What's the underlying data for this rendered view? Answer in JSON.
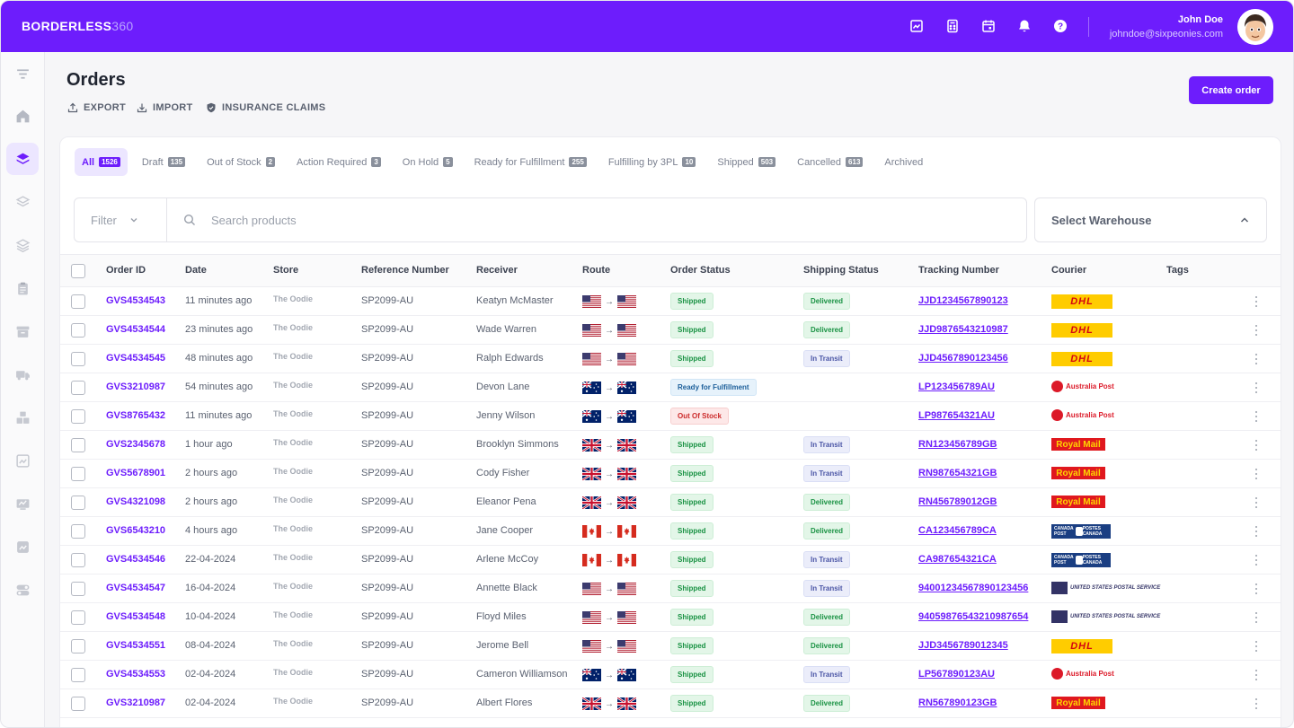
{
  "brand": {
    "name": "BORDERLESS",
    "suffix": "360"
  },
  "user": {
    "name": "John Doe",
    "email": "johndoe@sixpeonies.com"
  },
  "page": {
    "title": "Orders",
    "create_button": "Create order"
  },
  "actions": [
    {
      "label": "EXPORT",
      "icon": "export-icon"
    },
    {
      "label": "IMPORT",
      "icon": "import-icon"
    },
    {
      "label": "INSURANCE CLAIMS",
      "icon": "shield-icon"
    }
  ],
  "tabs": [
    {
      "label": "All",
      "count": "1526",
      "active": true
    },
    {
      "label": "Draft",
      "count": "135"
    },
    {
      "label": "Out of Stock",
      "count": "2"
    },
    {
      "label": "Action Required",
      "count": "3"
    },
    {
      "label": "On Hold",
      "count": "5"
    },
    {
      "label": "Ready for Fulfillment",
      "count": "255"
    },
    {
      "label": "Fulfilling by 3PL",
      "count": "10"
    },
    {
      "label": "Shipped",
      "count": "503"
    },
    {
      "label": "Cancelled",
      "count": "613"
    },
    {
      "label": "Archived",
      "count": ""
    }
  ],
  "filter": {
    "label": "Filter",
    "search_placeholder": "Search products",
    "warehouse_placeholder": "Select Warehouse"
  },
  "columns": [
    "Order ID",
    "Date",
    "Store",
    "Reference Number",
    "Receiver",
    "Route",
    "Order Status",
    "Shipping Status",
    "Tracking Number",
    "Courier",
    "Tags"
  ],
  "colors": {
    "accent": "#6d1dfc",
    "shipped": "#199243",
    "out_of_stock": "#cc2b2b"
  },
  "orders": [
    {
      "id": "GVS4534543",
      "date": "11 minutes ago",
      "store": "The Oodie",
      "ref": "SP2099-AU",
      "receiver": "Keatyn McMaster",
      "route": "us",
      "status": "Shipped",
      "shipping": "Delivered",
      "tracking": "JJD1234567890123",
      "courier": "dhl"
    },
    {
      "id": "GVS4534544",
      "date": "23 minutes ago",
      "store": "The Oodie",
      "ref": "SP2099-AU",
      "receiver": "Wade Warren",
      "route": "us",
      "status": "Shipped",
      "shipping": "Delivered",
      "tracking": "JJD9876543210987",
      "courier": "dhl"
    },
    {
      "id": "GVS4534545",
      "date": "48 minutes ago",
      "store": "The Oodie",
      "ref": "SP2099-AU",
      "receiver": "Ralph Edwards",
      "route": "us",
      "status": "Shipped",
      "shipping": "In Transit",
      "tracking": "JJD4567890123456",
      "courier": "dhl"
    },
    {
      "id": "GVS3210987",
      "date": "54 minutes ago",
      "store": "The Oodie",
      "ref": "SP2099-AU",
      "receiver": "Devon Lane",
      "route": "au",
      "status": "Ready for Fulfillment",
      "shipping": "",
      "tracking": "LP123456789AU",
      "courier": "auspost"
    },
    {
      "id": "GVS8765432",
      "date": "11 minutes ago",
      "store": "The Oodie",
      "ref": "SP2099-AU",
      "receiver": "Jenny Wilson",
      "route": "au",
      "status": "Out Of Stock",
      "shipping": "",
      "tracking": "LP987654321AU",
      "courier": "auspost"
    },
    {
      "id": "GVS2345678",
      "date": "1 hour ago",
      "store": "The Oodie",
      "ref": "SP2099-AU",
      "receiver": "Brooklyn Simmons",
      "route": "uk",
      "status": "Shipped",
      "shipping": "In Transit",
      "tracking": "RN123456789GB",
      "courier": "royalmail"
    },
    {
      "id": "GVS5678901",
      "date": "2 hours ago",
      "store": "The Oodie",
      "ref": "SP2099-AU",
      "receiver": "Cody Fisher",
      "route": "uk",
      "status": "Shipped",
      "shipping": "In Transit",
      "tracking": "RN987654321GB",
      "courier": "royalmail"
    },
    {
      "id": "GVS4321098",
      "date": "2 hours ago",
      "store": "The Oodie",
      "ref": "SP2099-AU",
      "receiver": "Eleanor Pena",
      "route": "uk",
      "status": "Shipped",
      "shipping": "Delivered",
      "tracking": "RN456789012GB",
      "courier": "royalmail"
    },
    {
      "id": "GVS6543210",
      "date": "4 hours ago",
      "store": "The Oodie",
      "ref": "SP2099-AU",
      "receiver": "Jane Cooper",
      "route": "ca",
      "status": "Shipped",
      "shipping": "Delivered",
      "tracking": "CA123456789CA",
      "courier": "canadapost"
    },
    {
      "id": "GVS4534546",
      "date": "22-04-2024",
      "store": "The Oodie",
      "ref": "SP2099-AU",
      "receiver": "Arlene McCoy",
      "route": "ca",
      "status": "Shipped",
      "shipping": "In Transit",
      "tracking": "CA987654321CA",
      "courier": "canadapost"
    },
    {
      "id": "GVS4534547",
      "date": "16-04-2024",
      "store": "The Oodie",
      "ref": "SP2099-AU",
      "receiver": "Annette Black",
      "route": "us",
      "status": "Shipped",
      "shipping": "In Transit",
      "tracking": "9400123456789012345​6",
      "courier": "usps"
    },
    {
      "id": "GVS4534548",
      "date": "10-04-2024",
      "store": "The Oodie",
      "ref": "SP2099-AU",
      "receiver": "Floyd Miles",
      "route": "us",
      "status": "Shipped",
      "shipping": "Delivered",
      "tracking": "9405987654321098765​4",
      "courier": "usps"
    },
    {
      "id": "GVS4534551",
      "date": "08-04-2024",
      "store": "The Oodie",
      "ref": "SP2099-AU",
      "receiver": "Jerome Bell",
      "route": "us",
      "status": "Shipped",
      "shipping": "Delivered",
      "tracking": "JJD3456789012345",
      "courier": "dhl"
    },
    {
      "id": "GVS4534553",
      "date": "02-04-2024",
      "store": "The Oodie",
      "ref": "SP2099-AU",
      "receiver": "Cameron Williamson",
      "route": "au",
      "status": "Shipped",
      "shipping": "In Transit",
      "tracking": "LP567890123AU",
      "courier": "auspost"
    },
    {
      "id": "GVS3210987",
      "date": "02-04-2024",
      "store": "The Oodie",
      "ref": "SP2099-AU",
      "receiver": "Albert Flores",
      "route": "uk",
      "status": "Shipped",
      "shipping": "Delivered",
      "tracking": "RN567890123GB",
      "courier": "royalmail"
    }
  ],
  "courier_labels": {
    "dhl": "DHL",
    "auspost": "Australia Post",
    "royalmail": "Royal Mail",
    "canadapost_left": "CANADA POST",
    "canadapost_right": "POSTES CANADA",
    "usps": "UNITED STATES POSTAL SERVICE"
  }
}
